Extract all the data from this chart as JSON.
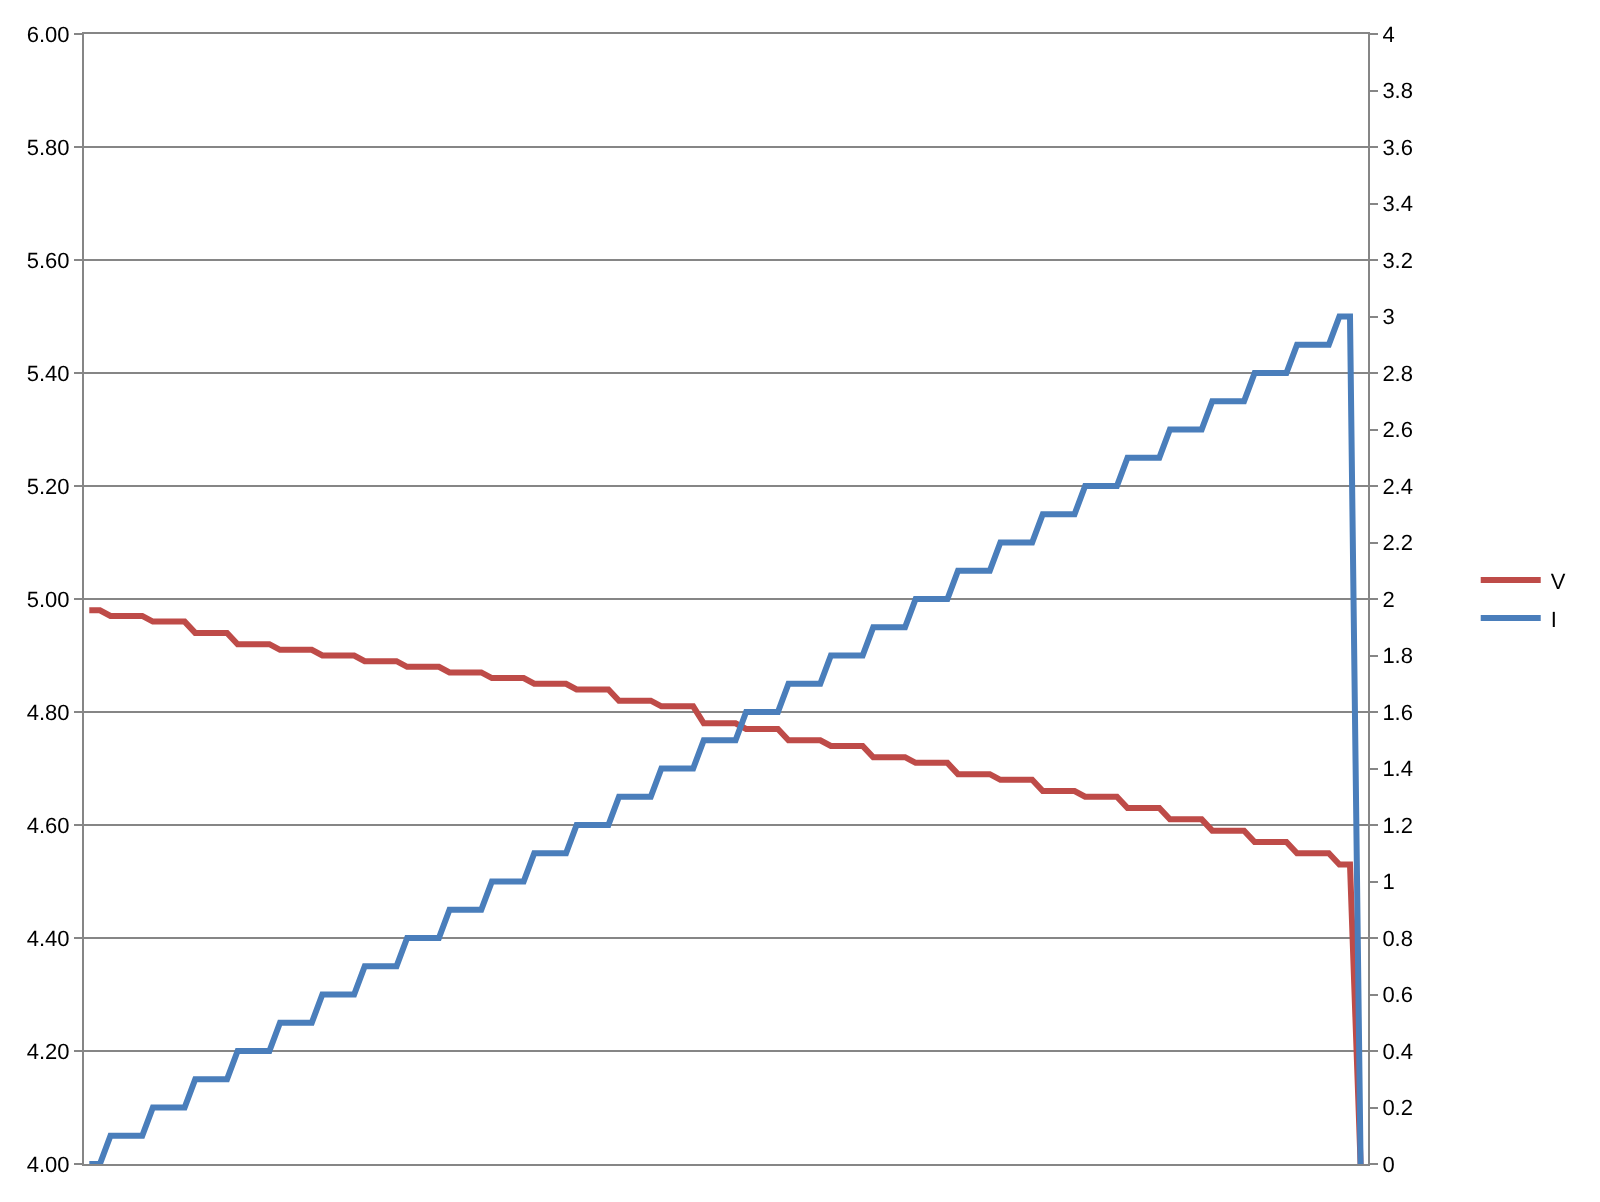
{
  "chart_data": {
    "type": "line",
    "categories": [
      null,
      null,
      null,
      null,
      null,
      null,
      null,
      null,
      null,
      null,
      null,
      null,
      null,
      null,
      null,
      null,
      null,
      null,
      null,
      null,
      null,
      null,
      null,
      null,
      null,
      null,
      null,
      null,
      null,
      null,
      null,
      null,
      null,
      null,
      null,
      null,
      null,
      null,
      null,
      null,
      null,
      null,
      null,
      null,
      null,
      null,
      null,
      null,
      null,
      null,
      null,
      null,
      null,
      null,
      null,
      null,
      null,
      null,
      null,
      null,
      null,
      null,
      null,
      null,
      null,
      null,
      null,
      null,
      null,
      null,
      null,
      null,
      null,
      null,
      null,
      null,
      null,
      null,
      null,
      null,
      null,
      null,
      null,
      null,
      null,
      null,
      null,
      null,
      null,
      null,
      null,
      null,
      null,
      null,
      null,
      null,
      null,
      null,
      null,
      null,
      null,
      null,
      null,
      null,
      null,
      null,
      null,
      null,
      null,
      null,
      null,
      null,
      null,
      null,
      null,
      null,
      null,
      null,
      null,
      null,
      null
    ],
    "series": [
      {
        "name": "V",
        "color": "#be4b48",
        "values": [
          4.98,
          4.98,
          4.97,
          4.97,
          4.97,
          4.97,
          4.96,
          4.96,
          4.96,
          4.96,
          4.94,
          4.94,
          4.94,
          4.94,
          4.92,
          4.92,
          4.92,
          4.92,
          4.91,
          4.91,
          4.91,
          4.91,
          4.9,
          4.9,
          4.9,
          4.9,
          4.89,
          4.89,
          4.89,
          4.89,
          4.88,
          4.88,
          4.88,
          4.88,
          4.87,
          4.87,
          4.87,
          4.87,
          4.86,
          4.86,
          4.86,
          4.86,
          4.85,
          4.85,
          4.85,
          4.85,
          4.84,
          4.84,
          4.84,
          4.84,
          4.82,
          4.82,
          4.82,
          4.82,
          4.81,
          4.81,
          4.81,
          4.81,
          4.78,
          4.78,
          4.78,
          4.78,
          4.77,
          4.77,
          4.77,
          4.77,
          4.75,
          4.75,
          4.75,
          4.75,
          4.74,
          4.74,
          4.74,
          4.74,
          4.72,
          4.72,
          4.72,
          4.72,
          4.71,
          4.71,
          4.71,
          4.71,
          4.69,
          4.69,
          4.69,
          4.69,
          4.68,
          4.68,
          4.68,
          4.68,
          4.66,
          4.66,
          4.66,
          4.66,
          4.65,
          4.65,
          4.65,
          4.65,
          4.63,
          4.63,
          4.63,
          4.63,
          4.61,
          4.61,
          4.61,
          4.61,
          4.59,
          4.59,
          4.59,
          4.59,
          4.57,
          4.57,
          4.57,
          4.57,
          4.55,
          4.55,
          4.55,
          4.55,
          4.53,
          4.53,
          4.0
        ]
      },
      {
        "name": "I",
        "color": "#4a7ebb",
        "axis": "y2",
        "values": [
          0,
          0,
          0.1,
          0.1,
          0.1,
          0.1,
          0.2,
          0.2,
          0.2,
          0.2,
          0.3,
          0.3,
          0.3,
          0.3,
          0.4,
          0.4,
          0.4,
          0.4,
          0.5,
          0.5,
          0.5,
          0.5,
          0.6,
          0.6,
          0.6,
          0.6,
          0.7,
          0.7,
          0.7,
          0.7,
          0.8,
          0.8,
          0.8,
          0.8,
          0.9,
          0.9,
          0.9,
          0.9,
          1.0,
          1.0,
          1.0,
          1.0,
          1.1,
          1.1,
          1.1,
          1.1,
          1.2,
          1.2,
          1.2,
          1.2,
          1.3,
          1.3,
          1.3,
          1.3,
          1.4,
          1.4,
          1.4,
          1.4,
          1.5,
          1.5,
          1.5,
          1.5,
          1.6,
          1.6,
          1.6,
          1.6,
          1.7,
          1.7,
          1.7,
          1.7,
          1.8,
          1.8,
          1.8,
          1.8,
          1.9,
          1.9,
          1.9,
          1.9,
          2.0,
          2.0,
          2.0,
          2.0,
          2.1,
          2.1,
          2.1,
          2.1,
          2.2,
          2.2,
          2.2,
          2.2,
          2.3,
          2.3,
          2.3,
          2.3,
          2.4,
          2.4,
          2.4,
          2.4,
          2.5,
          2.5,
          2.5,
          2.5,
          2.6,
          2.6,
          2.6,
          2.6,
          2.7,
          2.7,
          2.7,
          2.7,
          2.8,
          2.8,
          2.8,
          2.8,
          2.9,
          2.9,
          2.9,
          2.9,
          3.0,
          3.0,
          0
        ]
      }
    ],
    "ylim": [
      4,
      6
    ],
    "yticks": [
      {
        "value": 4,
        "label": "4.00"
      },
      {
        "value": 4.2,
        "label": "4.20"
      },
      {
        "value": 4.4,
        "label": "4.40"
      },
      {
        "value": 4.6,
        "label": "4.60"
      },
      {
        "value": 4.8,
        "label": "4.80"
      },
      {
        "value": 5,
        "label": "5.00"
      },
      {
        "value": 5.2,
        "label": "5.20"
      },
      {
        "value": 5.4,
        "label": "5.40"
      },
      {
        "value": 5.6,
        "label": "5.60"
      },
      {
        "value": 5.8,
        "label": "5.80"
      },
      {
        "value": 6,
        "label": "6.00"
      }
    ],
    "y2lim": [
      0,
      4
    ],
    "y2ticks": [
      0,
      0.2,
      0.4,
      0.6,
      0.8,
      1,
      1.2,
      1.4,
      1.6,
      1.8,
      2,
      2.2,
      2.4,
      2.6,
      2.8,
      3,
      3.2,
      3.4,
      3.6,
      3.8,
      4
    ],
    "grid": "y",
    "legend": "right",
    "marker": "none",
    "line_style": "solid"
  }
}
